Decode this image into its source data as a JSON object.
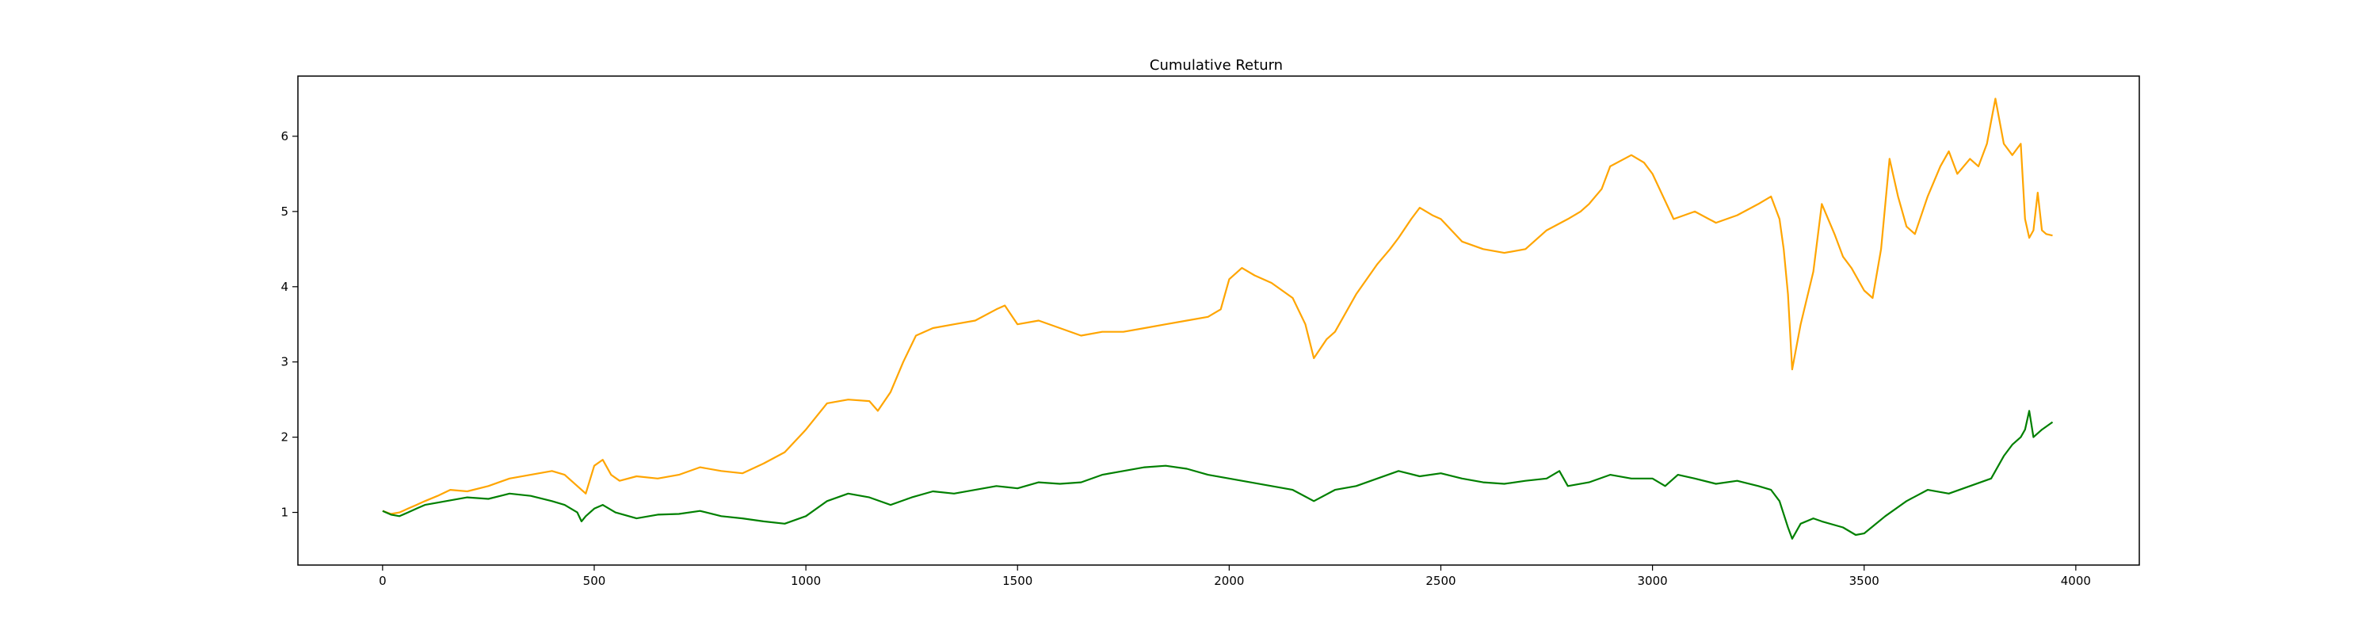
{
  "chart_data": {
    "type": "line",
    "title": "Cumulative Return",
    "xlabel": "",
    "ylabel": "",
    "xlim": [
      -200,
      4150
    ],
    "ylim": [
      0.3,
      6.8
    ],
    "xticks": [
      0,
      500,
      1000,
      1500,
      2000,
      2500,
      3000,
      3500,
      4000
    ],
    "yticks": [
      1,
      2,
      3,
      4,
      5,
      6
    ],
    "grid": false,
    "legend": "none",
    "series": [
      {
        "color": "#ffa500",
        "x": [
          0,
          20,
          40,
          60,
          80,
          100,
          130,
          160,
          200,
          250,
          300,
          350,
          400,
          430,
          460,
          480,
          500,
          520,
          540,
          560,
          600,
          650,
          700,
          750,
          800,
          850,
          900,
          950,
          1000,
          1050,
          1100,
          1150,
          1170,
          1200,
          1230,
          1260,
          1300,
          1350,
          1400,
          1450,
          1470,
          1500,
          1550,
          1600,
          1650,
          1700,
          1750,
          1800,
          1850,
          1900,
          1950,
          1980,
          2000,
          2030,
          2060,
          2100,
          2150,
          2180,
          2200,
          2230,
          2250,
          2300,
          2350,
          2380,
          2400,
          2430,
          2450,
          2480,
          2500,
          2550,
          2600,
          2650,
          2700,
          2750,
          2800,
          2830,
          2850,
          2880,
          2900,
          2950,
          2980,
          3000,
          3050,
          3100,
          3150,
          3200,
          3250,
          3280,
          3300,
          3310,
          3320,
          3330,
          3350,
          3380,
          3400,
          3430,
          3450,
          3470,
          3500,
          3520,
          3540,
          3560,
          3580,
          3600,
          3620,
          3650,
          3680,
          3700,
          3720,
          3750,
          3770,
          3790,
          3800,
          3810,
          3820,
          3830,
          3850,
          3870,
          3880,
          3890,
          3900,
          3910,
          3920,
          3930,
          3945
        ],
        "y": [
          1.02,
          0.98,
          1.0,
          1.05,
          1.1,
          1.15,
          1.22,
          1.3,
          1.28,
          1.35,
          1.45,
          1.5,
          1.55,
          1.5,
          1.35,
          1.25,
          1.62,
          1.7,
          1.5,
          1.42,
          1.48,
          1.45,
          1.5,
          1.6,
          1.55,
          1.52,
          1.65,
          1.8,
          2.1,
          2.45,
          2.5,
          2.48,
          2.35,
          2.6,
          3.0,
          3.35,
          3.45,
          3.5,
          3.55,
          3.7,
          3.75,
          3.5,
          3.55,
          3.45,
          3.35,
          3.4,
          3.4,
          3.45,
          3.5,
          3.55,
          3.6,
          3.7,
          4.1,
          4.25,
          4.15,
          4.05,
          3.85,
          3.5,
          3.05,
          3.3,
          3.4,
          3.9,
          4.3,
          4.5,
          4.65,
          4.9,
          5.05,
          4.95,
          4.9,
          4.6,
          4.5,
          4.45,
          4.5,
          4.75,
          4.9,
          5.0,
          5.1,
          5.3,
          5.6,
          5.75,
          5.65,
          5.5,
          4.9,
          5.0,
          4.85,
          4.95,
          5.1,
          5.2,
          4.9,
          4.5,
          3.9,
          2.9,
          3.5,
          4.2,
          5.1,
          4.7,
          4.4,
          4.25,
          3.95,
          3.85,
          4.5,
          5.7,
          5.2,
          4.8,
          4.7,
          5.2,
          5.6,
          5.8,
          5.5,
          5.7,
          5.6,
          5.9,
          6.2,
          6.5,
          6.2,
          5.9,
          5.75,
          5.9,
          4.9,
          4.65,
          4.75,
          5.25,
          4.75,
          4.7,
          4.68
        ]
      },
      {
        "color": "#008000",
        "x": [
          0,
          20,
          40,
          60,
          80,
          100,
          150,
          200,
          250,
          300,
          350,
          400,
          430,
          460,
          470,
          480,
          500,
          520,
          550,
          600,
          650,
          700,
          750,
          800,
          850,
          900,
          950,
          1000,
          1050,
          1100,
          1150,
          1200,
          1250,
          1300,
          1350,
          1400,
          1450,
          1500,
          1550,
          1600,
          1650,
          1700,
          1750,
          1800,
          1850,
          1900,
          1950,
          2000,
          2050,
          2100,
          2150,
          2200,
          2250,
          2300,
          2350,
          2400,
          2450,
          2500,
          2550,
          2600,
          2650,
          2700,
          2750,
          2780,
          2800,
          2850,
          2900,
          2950,
          3000,
          3030,
          3060,
          3100,
          3150,
          3200,
          3250,
          3280,
          3300,
          3320,
          3330,
          3350,
          3380,
          3400,
          3450,
          3480,
          3500,
          3550,
          3600,
          3650,
          3700,
          3750,
          3800,
          3830,
          3850,
          3870,
          3880,
          3890,
          3900,
          3920,
          3945
        ],
        "y": [
          1.02,
          0.97,
          0.95,
          1.0,
          1.05,
          1.1,
          1.15,
          1.2,
          1.18,
          1.25,
          1.22,
          1.15,
          1.1,
          1.0,
          0.88,
          0.95,
          1.05,
          1.1,
          1.0,
          0.92,
          0.97,
          0.98,
          1.02,
          0.95,
          0.92,
          0.88,
          0.85,
          0.95,
          1.15,
          1.25,
          1.2,
          1.1,
          1.2,
          1.28,
          1.25,
          1.3,
          1.35,
          1.32,
          1.4,
          1.38,
          1.4,
          1.5,
          1.55,
          1.6,
          1.62,
          1.58,
          1.5,
          1.45,
          1.4,
          1.35,
          1.3,
          1.15,
          1.3,
          1.35,
          1.45,
          1.55,
          1.48,
          1.52,
          1.45,
          1.4,
          1.38,
          1.42,
          1.45,
          1.55,
          1.35,
          1.4,
          1.5,
          1.45,
          1.45,
          1.35,
          1.5,
          1.45,
          1.38,
          1.42,
          1.35,
          1.3,
          1.15,
          0.8,
          0.65,
          0.85,
          0.92,
          0.88,
          0.8,
          0.7,
          0.72,
          0.95,
          1.15,
          1.3,
          1.25,
          1.35,
          1.45,
          1.75,
          1.9,
          2.0,
          2.1,
          2.35,
          2.0,
          2.1,
          2.2
        ]
      }
    ]
  }
}
